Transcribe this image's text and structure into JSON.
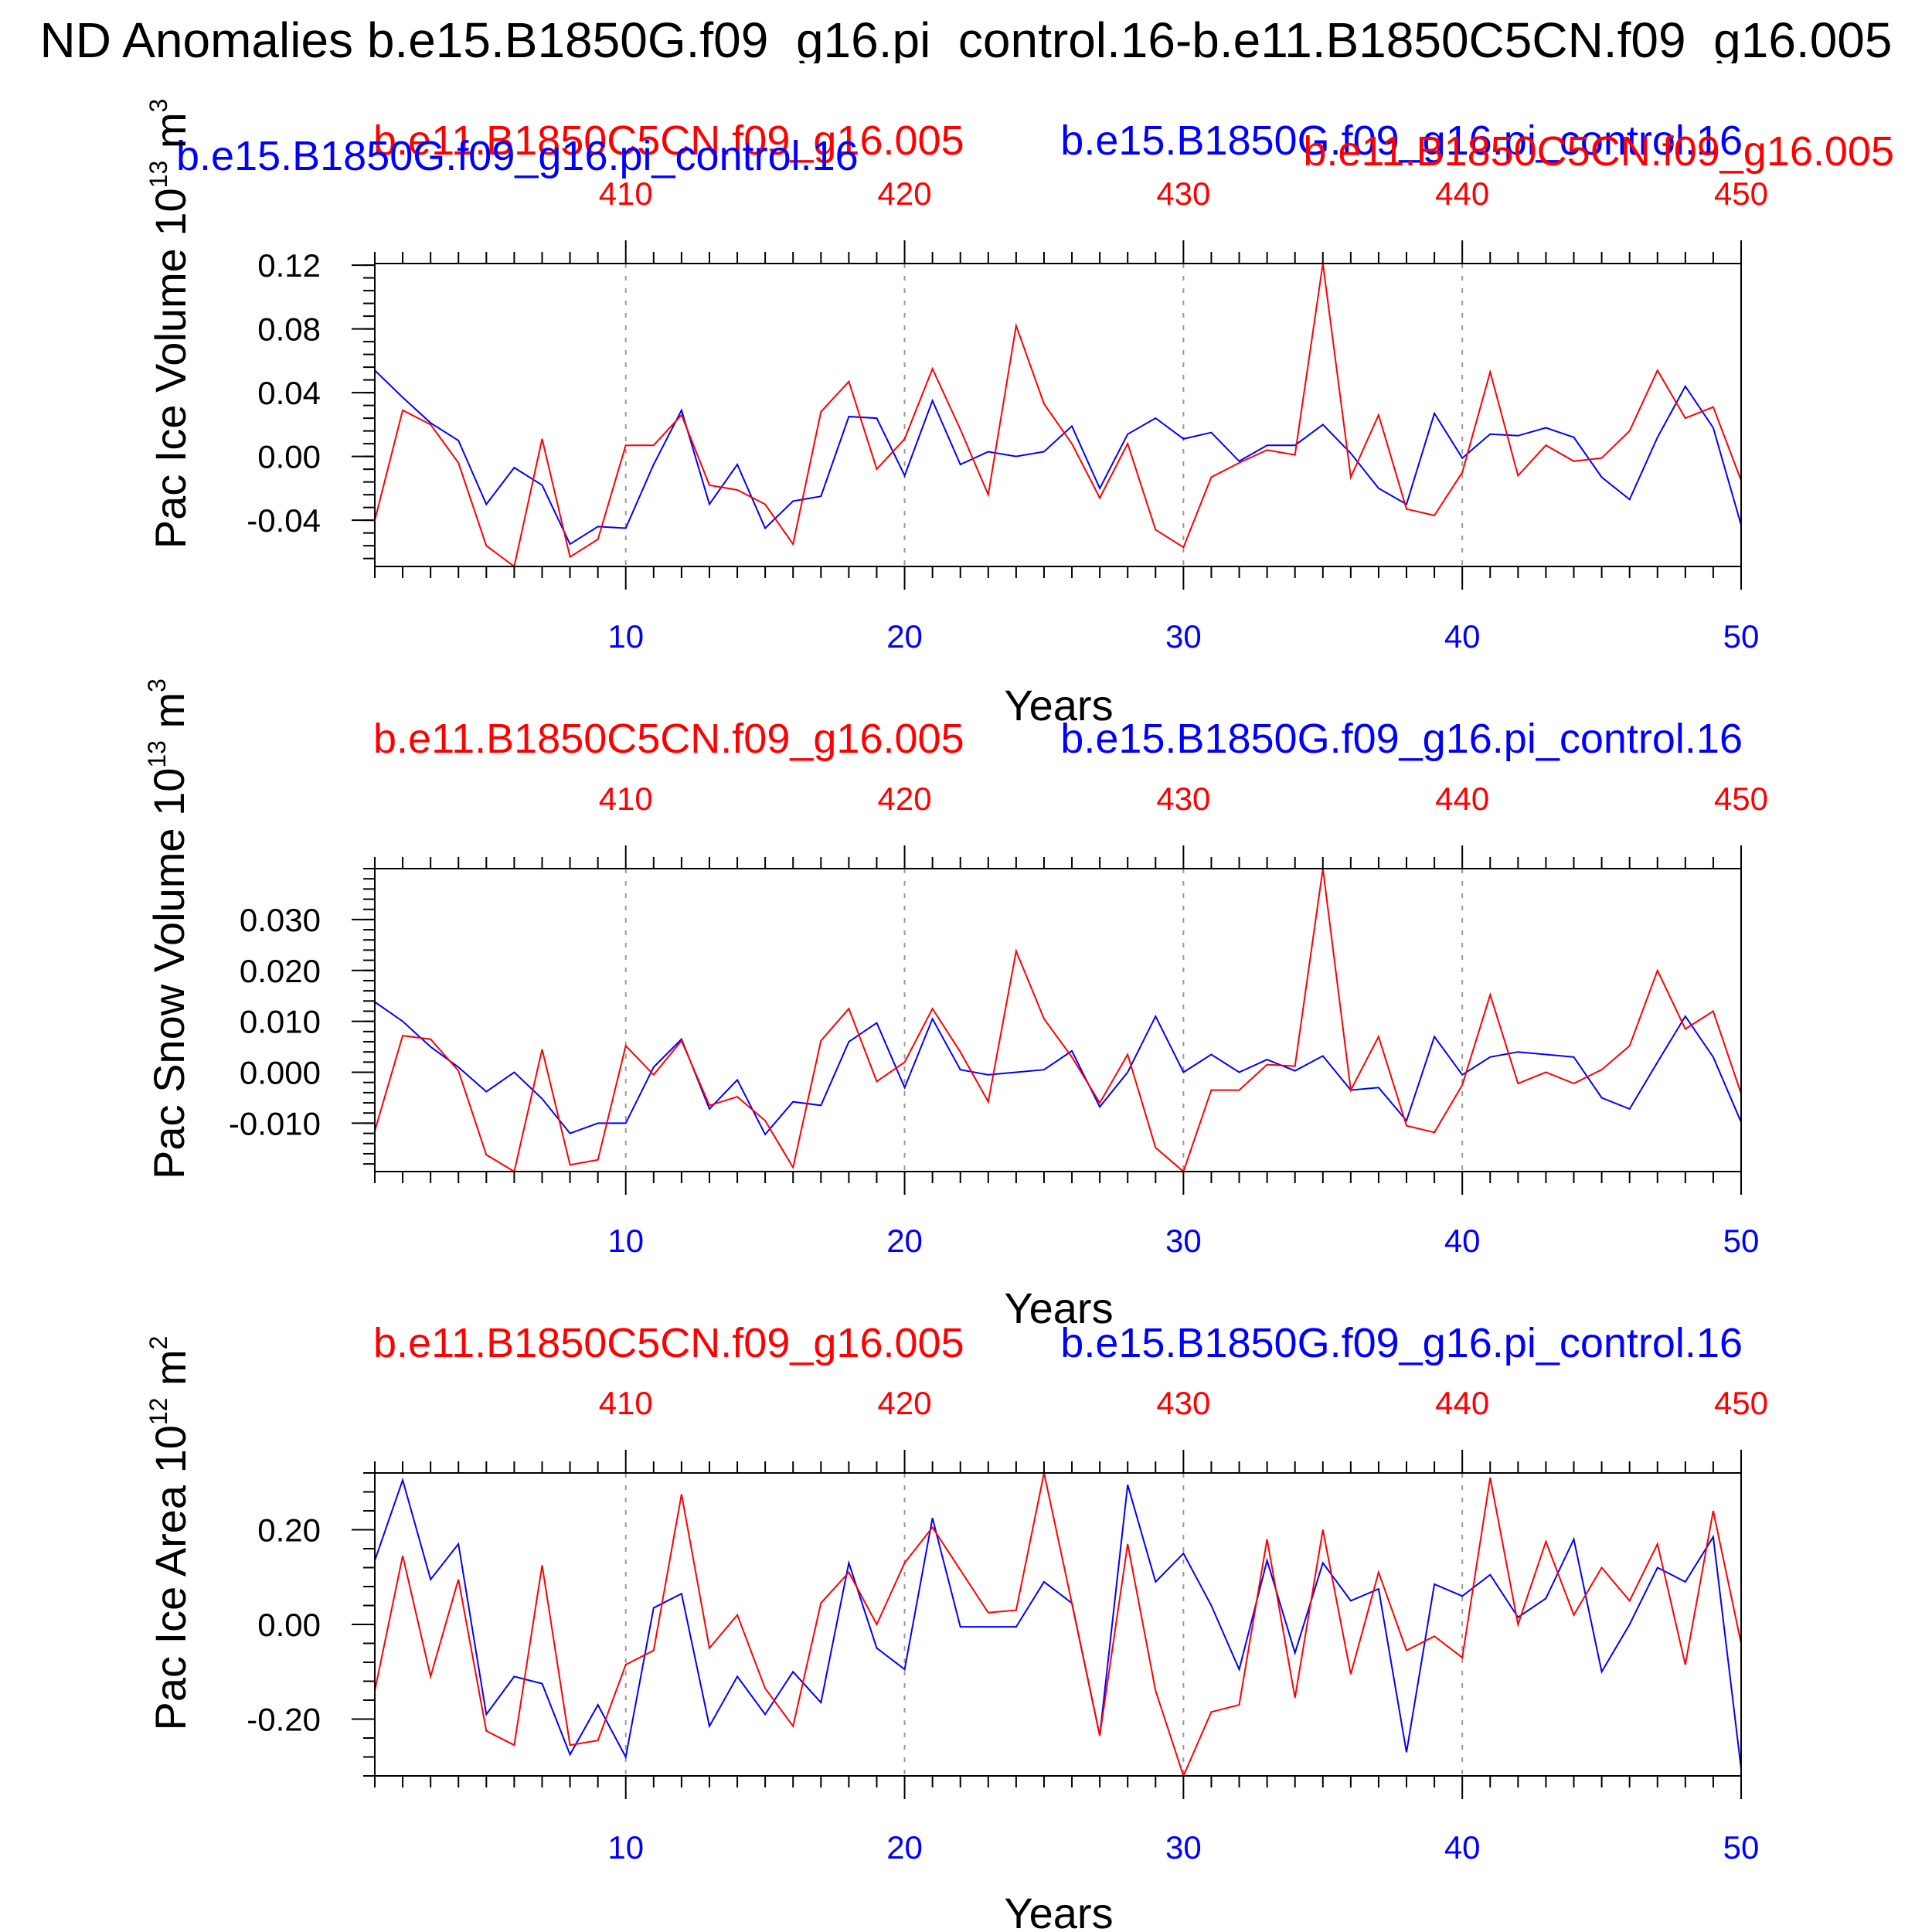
{
  "title": "ND Anomalies b.e15.B1850G.f09_g16.pi_control.16-b.e11.B1850C5CN.f09_g16.005",
  "colors": {
    "series_a": "#0000ff",
    "series_b": "#ff0000",
    "axis": "#000000",
    "grid": "#999999"
  },
  "chart_data": [
    {
      "type": "line",
      "legend_labels": [
        "b.e11.B1850C5CN.f09_g16.005",
        "b.e15.B1850G.f09_g16.pi_control.16"
      ],
      "extra_legend_labels": [
        "b.e15.B1850G.f09_g16.pi_control.16",
        "b.e11.B1850C5CN.f09_g16.005"
      ],
      "ylabel": "Pac Ice Volume 10",
      "ylabel_exp": "13",
      "ylabel_unit": " m",
      "ylabel_unit_exp": "3",
      "xlabel": "Years",
      "xlim": [
        1,
        50
      ],
      "ylim": [
        -0.069,
        0.121
      ],
      "yticks": [
        -0.04,
        0.0,
        0.04,
        0.08,
        0.12
      ],
      "ytick_labels": [
        "-0.04",
        "0.00",
        "0.04",
        "0.08",
        "0.12"
      ],
      "xticks_bottom": [
        10,
        20,
        30,
        40,
        50
      ],
      "xticks_top": [
        410,
        420,
        430,
        440,
        450
      ],
      "grid_x": [
        10,
        20,
        30,
        40
      ],
      "series": [
        {
          "name": "b.e15.B1850G.f09_g16.pi_control.16",
          "color": "#0000ff",
          "x": [
            1,
            2,
            3,
            4,
            5,
            6,
            7,
            8,
            9,
            10,
            11,
            12,
            13,
            14,
            15,
            16,
            17,
            18,
            19,
            20,
            21,
            22,
            23,
            24,
            25,
            26,
            27,
            28,
            29,
            30,
            31,
            32,
            33,
            34,
            35,
            36,
            37,
            38,
            39,
            40,
            41,
            42,
            43,
            44,
            45,
            46,
            47,
            48,
            49,
            50
          ],
          "values": [
            0.054,
            0.037,
            0.021,
            0.01,
            -0.03,
            -0.007,
            -0.018,
            -0.055,
            -0.044,
            -0.045,
            -0.005,
            0.029,
            -0.03,
            -0.005,
            -0.045,
            -0.028,
            -0.025,
            0.025,
            0.024,
            -0.012,
            0.035,
            -0.005,
            0.003,
            0.0,
            0.003,
            0.019,
            -0.02,
            0.014,
            0.024,
            0.011,
            0.015,
            -0.003,
            0.007,
            0.007,
            0.02,
            0.002,
            -0.02,
            -0.03,
            0.027,
            -0.001,
            0.014,
            0.013,
            0.018,
            0.012,
            -0.013,
            -0.027,
            0.012,
            0.044,
            0.018,
            -0.043
          ]
        },
        {
          "name": "b.e11.B1850C5CN.f09_g16.005",
          "color": "#ff0000",
          "x": [
            1,
            2,
            3,
            4,
            5,
            6,
            7,
            8,
            9,
            10,
            11,
            12,
            13,
            14,
            15,
            16,
            17,
            18,
            19,
            20,
            21,
            22,
            23,
            24,
            25,
            26,
            27,
            28,
            29,
            30,
            31,
            32,
            33,
            34,
            35,
            36,
            37,
            38,
            39,
            40,
            41,
            42,
            43,
            44,
            45,
            46,
            47,
            48,
            49,
            50
          ],
          "values": [
            -0.04,
            0.029,
            0.02,
            -0.004,
            -0.056,
            -0.069,
            0.011,
            -0.063,
            -0.052,
            0.007,
            0.007,
            0.026,
            -0.018,
            -0.021,
            -0.03,
            -0.055,
            0.028,
            0.047,
            -0.008,
            0.011,
            0.055,
            0.017,
            -0.024,
            0.082,
            0.033,
            0.008,
            -0.026,
            0.008,
            -0.046,
            -0.057,
            -0.013,
            -0.004,
            0.004,
            0.001,
            0.121,
            -0.013,
            0.026,
            -0.033,
            -0.037,
            -0.01,
            0.053,
            -0.012,
            0.007,
            -0.003,
            -0.001,
            0.016,
            0.054,
            0.024,
            0.031,
            -0.015
          ]
        }
      ]
    },
    {
      "type": "line",
      "legend_labels": [
        "b.e11.B1850C5CN.f09_g16.005",
        "b.e15.B1850G.f09_g16.pi_control.16"
      ],
      "ylabel": "Pac Snow Volume 10",
      "ylabel_exp": "13",
      "ylabel_unit": " m",
      "ylabel_unit_exp": "3",
      "xlabel": "Years",
      "xlim": [
        1,
        50
      ],
      "ylim": [
        -0.0195,
        0.04
      ],
      "yticks": [
        -0.01,
        0.0,
        0.01,
        0.02,
        0.03
      ],
      "ytick_labels": [
        "-0.010",
        "0.000",
        "0.010",
        "0.020",
        "0.030"
      ],
      "xticks_bottom": [
        10,
        20,
        30,
        40,
        50
      ],
      "xticks_top": [
        410,
        420,
        430,
        440,
        450
      ],
      "grid_x": [
        10,
        20,
        30,
        40
      ],
      "series": [
        {
          "name": "b.e15.B1850G.f09_g16.pi_control.16",
          "color": "#0000ff",
          "x": [
            1,
            2,
            3,
            4,
            5,
            6,
            7,
            8,
            9,
            10,
            11,
            12,
            13,
            14,
            15,
            16,
            17,
            18,
            19,
            20,
            21,
            22,
            23,
            24,
            25,
            26,
            27,
            28,
            29,
            30,
            31,
            32,
            33,
            34,
            35,
            36,
            37,
            38,
            39,
            40,
            41,
            42,
            43,
            44,
            45,
            46,
            47,
            48,
            49,
            50
          ],
          "values": [
            0.0138,
            0.01,
            0.005,
            0.001,
            -0.0038,
            0.0,
            -0.0052,
            -0.012,
            -0.01,
            -0.01,
            0.001,
            0.0065,
            -0.0072,
            -0.0015,
            -0.0122,
            -0.0058,
            -0.0065,
            0.006,
            0.0097,
            -0.003,
            0.0105,
            0.0005,
            -0.0005,
            0.0,
            0.0005,
            0.0042,
            -0.0068,
            0.0,
            0.011,
            0.0,
            0.0035,
            0.0,
            0.0025,
            0.0003,
            0.0032,
            -0.0035,
            -0.003,
            -0.0095,
            0.007,
            -0.0005,
            0.003,
            0.004,
            0.0035,
            0.003,
            -0.005,
            -0.0072,
            0.002,
            0.011,
            0.003,
            -0.0098
          ]
        },
        {
          "name": "b.e11.B1850C5CN.f09_g16.005",
          "color": "#ff0000",
          "x": [
            1,
            2,
            3,
            4,
            5,
            6,
            7,
            8,
            9,
            10,
            11,
            12,
            13,
            14,
            15,
            16,
            17,
            18,
            19,
            20,
            21,
            22,
            23,
            24,
            25,
            26,
            27,
            28,
            29,
            30,
            31,
            32,
            33,
            34,
            35,
            36,
            37,
            38,
            39,
            40,
            41,
            42,
            43,
            44,
            45,
            46,
            47,
            48,
            49,
            50
          ],
          "values": [
            -0.0115,
            0.0072,
            0.0065,
            0.0003,
            -0.0162,
            -0.0195,
            0.0045,
            -0.0182,
            -0.0172,
            0.0052,
            -0.0005,
            0.0062,
            -0.0065,
            -0.0048,
            -0.0095,
            -0.0187,
            0.0062,
            0.0125,
            -0.0018,
            0.002,
            0.0125,
            0.004,
            -0.0058,
            0.0238,
            0.0105,
            0.003,
            -0.006,
            0.0035,
            -0.0148,
            -0.0195,
            -0.0035,
            -0.0035,
            0.0015,
            0.0012,
            0.04,
            -0.0035,
            0.007,
            -0.0105,
            -0.0118,
            -0.0025,
            0.0152,
            -0.0022,
            0.0,
            -0.0022,
            0.0005,
            0.0052,
            0.02,
            0.0085,
            0.012,
            -0.0042
          ]
        }
      ]
    },
    {
      "type": "line",
      "legend_labels": [
        "b.e11.B1850C5CN.f09_g16.005",
        "b.e15.B1850G.f09_g16.pi_control.16"
      ],
      "ylabel": "Pac Ice Area 10",
      "ylabel_exp": "12",
      "ylabel_unit": " m",
      "ylabel_unit_exp": "2",
      "xlabel": "Years",
      "xlim": [
        1,
        50
      ],
      "ylim": [
        -0.32,
        0.32
      ],
      "yticks": [
        -0.2,
        0.0,
        0.2
      ],
      "ytick_labels": [
        "-0.20",
        "0.00",
        "0.20"
      ],
      "xticks_bottom": [
        10,
        20,
        30,
        40,
        50
      ],
      "xticks_top": [
        410,
        420,
        430,
        440,
        450
      ],
      "grid_x": [
        10,
        20,
        30,
        40
      ],
      "series": [
        {
          "name": "b.e15.B1850G.f09_g16.pi_control.16",
          "color": "#0000ff",
          "x": [
            1,
            2,
            3,
            4,
            5,
            6,
            7,
            8,
            9,
            10,
            11,
            12,
            13,
            14,
            15,
            16,
            17,
            18,
            19,
            20,
            21,
            22,
            23,
            24,
            25,
            26,
            27,
            28,
            29,
            30,
            31,
            32,
            33,
            34,
            35,
            36,
            37,
            38,
            39,
            40,
            41,
            42,
            43,
            44,
            45,
            46,
            47,
            48,
            49,
            50
          ],
          "values": [
            0.135,
            0.305,
            0.095,
            0.17,
            -0.19,
            -0.11,
            -0.125,
            -0.275,
            -0.17,
            -0.28,
            0.035,
            0.065,
            -0.215,
            -0.11,
            -0.19,
            -0.1,
            -0.165,
            0.13,
            -0.05,
            -0.095,
            0.225,
            -0.005,
            -0.005,
            -0.005,
            0.09,
            0.045,
            -0.235,
            0.295,
            0.09,
            0.15,
            0.04,
            -0.095,
            0.135,
            -0.06,
            0.13,
            0.05,
            0.075,
            -0.27,
            0.085,
            0.06,
            0.105,
            0.015,
            0.055,
            0.18,
            -0.1,
            0.0,
            0.12,
            0.09,
            0.185,
            -0.305
          ]
        },
        {
          "name": "b.e11.B1850C5CN.f09_g16.005",
          "color": "#ff0000",
          "x": [
            1,
            2,
            3,
            4,
            5,
            6,
            7,
            8,
            9,
            10,
            11,
            12,
            13,
            14,
            15,
            16,
            17,
            18,
            19,
            20,
            21,
            22,
            23,
            24,
            25,
            26,
            27,
            28,
            29,
            30,
            31,
            32,
            33,
            34,
            35,
            36,
            37,
            38,
            39,
            40,
            41,
            42,
            43,
            44,
            45,
            46,
            47,
            48,
            49,
            50
          ],
          "values": [
            -0.14,
            0.145,
            -0.11,
            0.095,
            -0.225,
            -0.255,
            0.125,
            -0.255,
            -0.245,
            -0.085,
            -0.055,
            0.275,
            -0.05,
            0.02,
            -0.135,
            -0.215,
            0.045,
            0.11,
            0.0,
            0.13,
            0.205,
            0.115,
            0.025,
            0.03,
            0.32,
            0.045,
            -0.235,
            0.17,
            -0.14,
            -0.32,
            -0.185,
            -0.17,
            0.18,
            -0.155,
            0.2,
            -0.105,
            0.11,
            -0.055,
            -0.025,
            -0.07,
            0.31,
            0.0,
            0.175,
            0.02,
            0.12,
            0.05,
            0.17,
            -0.085,
            0.24,
            -0.04
          ]
        }
      ]
    }
  ]
}
